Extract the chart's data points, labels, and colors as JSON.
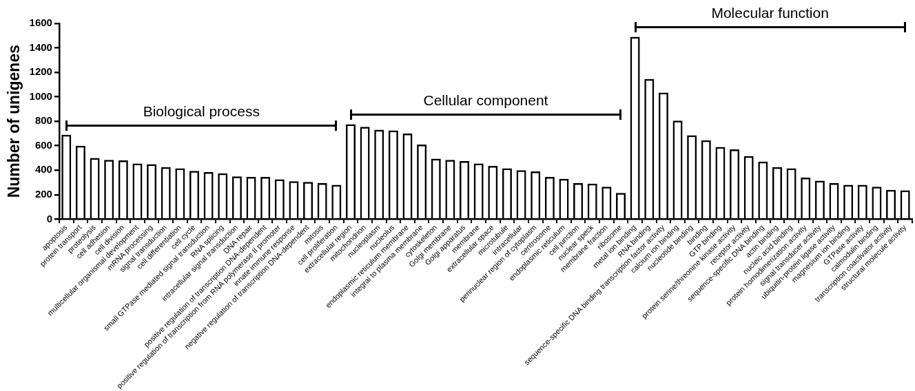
{
  "chart_data": {
    "type": "bar",
    "ylabel": "Number of unigenes",
    "categories": [
      "apoptosis",
      "protein transport",
      "proteolysis",
      "cell adhesion",
      "cell division",
      "multicellular organismal development",
      "mRNA processing",
      "signal transduction",
      "cell differentiation",
      "cell cycle",
      "small GTPase mediated signal transduction",
      "RNA splicing",
      "intracellular signal transduction",
      "DNA repair",
      "positive regulation of transcription DNA-dependent",
      "positive regulation of transcription from RNA polymerase II promoter",
      "innate immune response",
      "negative regulation of transcription DNA-dependent",
      "mitosis",
      "cell proliferation",
      "extracellular region",
      "mitochondrion",
      "nucleoplasm",
      "nucleolus",
      "endoplasmic reticulum membrane",
      "integral to plasma membrane",
      "cytoskeleton",
      "Golgi membrane",
      "Golgi apparatus",
      "membrane",
      "extracellular space",
      "microtubule",
      "intracellular",
      "perinuclear region of cytoplasm",
      "centrosome",
      "endoplasmic reticulum",
      "cell junction",
      "nuclear speck",
      "membrane fraction",
      "ribosome",
      "metal ion binding",
      "RNA binding",
      "sequence-specific DNA binding transcription factor activity",
      "calcium ion binding",
      "nucleotide binding",
      "binding",
      "GTP binding",
      "protein serine/threonine kinase activity",
      "receptor activity",
      "sequence-specific DNA binding",
      "actin binding",
      "nucleic acid binding",
      "protein homodimerization activity",
      "signal transducer activity",
      "ubiquitin-protein ligase activity",
      "magnesium ion binding",
      "GTPase activity",
      "calmodulin binding",
      "transcription coactivator activity",
      "structural molecule activity"
    ],
    "values": [
      690,
      600,
      500,
      485,
      480,
      455,
      450,
      425,
      415,
      395,
      385,
      375,
      350,
      345,
      345,
      325,
      310,
      305,
      295,
      280,
      775,
      755,
      730,
      725,
      700,
      610,
      495,
      485,
      475,
      455,
      435,
      415,
      400,
      390,
      345,
      330,
      295,
      290,
      265,
      215,
      1490,
      1145,
      1035,
      805,
      685,
      645,
      590,
      570,
      515,
      470,
      425,
      415,
      340,
      315,
      295,
      280,
      280,
      265,
      240,
      235
    ],
    "color": "#000000",
    "ylim": [
      0,
      1600
    ],
    "yticks": [
      0,
      200,
      400,
      600,
      800,
      1000,
      1200,
      1400,
      1600
    ],
    "grid": false,
    "legend": false,
    "annotations": [
      "Biological process",
      "Cellular component",
      "Molecular function"
    ]
  }
}
